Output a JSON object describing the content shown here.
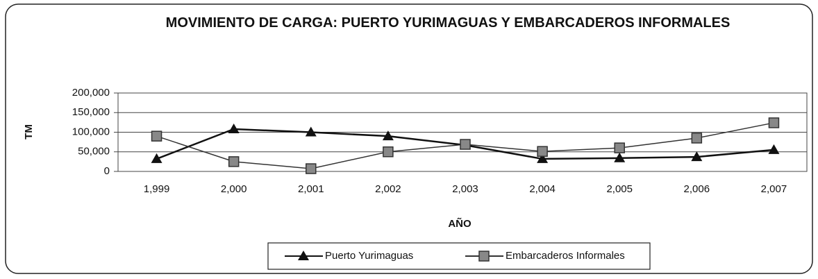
{
  "chart_data": {
    "type": "line",
    "title": "MOVIMIENTO DE CARGA: PUERTO YURIMAGUAS Y EMBARCADEROS INFORMALES",
    "x_label": "AÑO",
    "y_label": "TM",
    "categories": [
      "1,999",
      "2,000",
      "2,001",
      "2,002",
      "2,003",
      "2,004",
      "2,005",
      "2,006",
      "2,007"
    ],
    "series": [
      {
        "name": "Puerto Yurimaguas",
        "color": "#111111",
        "marker": "triangle",
        "values": [
          32000,
          108000,
          100000,
          90000,
          67000,
          32000,
          34000,
          37000,
          55000
        ]
      },
      {
        "name": "Embarcaderos Informales",
        "color": "#333333",
        "marker": "square",
        "values": [
          90000,
          25000,
          7000,
          50000,
          69000,
          51000,
          60000,
          85000,
          124000
        ]
      }
    ],
    "ylim": [
      0,
      200000
    ],
    "yticks": [
      0,
      {
        "value": 50000,
        "label": "50,000"
      },
      {
        "value": 100000,
        "label": "100,000"
      },
      {
        "value": 150000,
        "label": "150,000"
      },
      {
        "value": 200000,
        "label": "200,000"
      }
    ],
    "grid": true
  }
}
